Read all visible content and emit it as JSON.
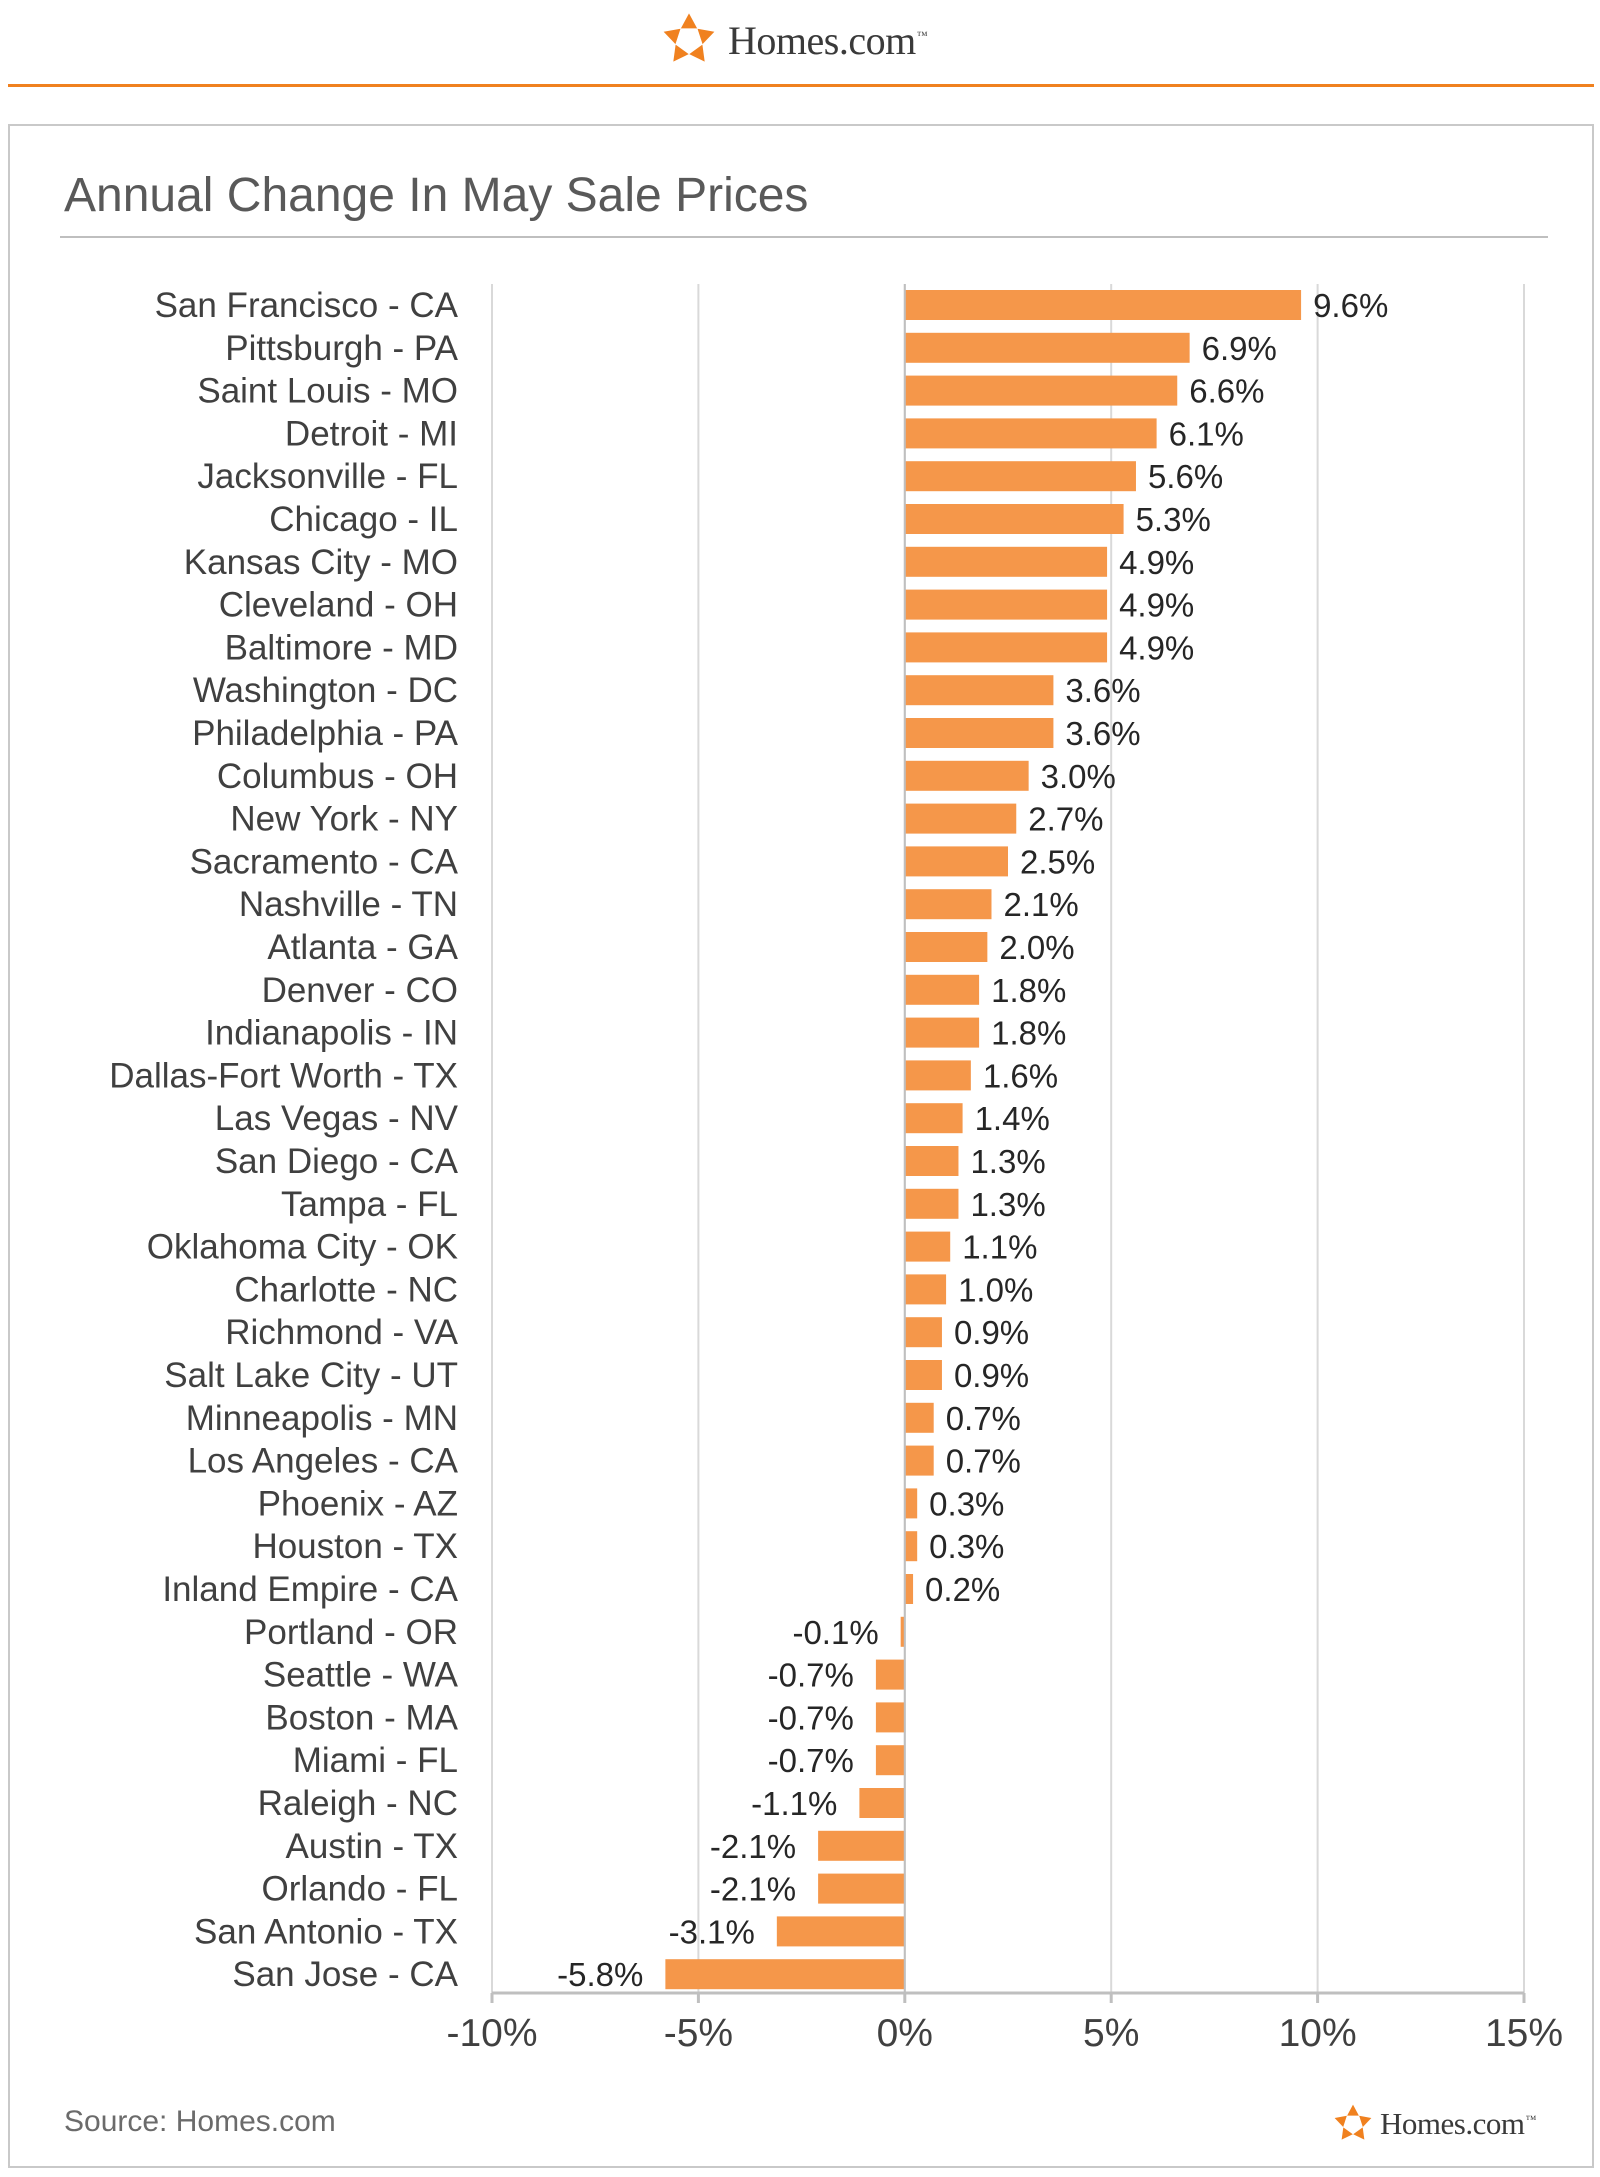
{
  "brand": {
    "name": "Homes.com",
    "tm": "™",
    "color": "#f0811f"
  },
  "chart_data": {
    "type": "bar",
    "orientation": "horizontal",
    "title": "Annual Change In May Sale Prices",
    "source": "Source: Homes.com",
    "bar_color": "#f5974a",
    "xlim": [
      -10,
      15
    ],
    "xticks": [
      -10,
      -5,
      0,
      5,
      10,
      15
    ],
    "xtick_labels": [
      "-10%",
      "-5%",
      "0%",
      "5%",
      "10%",
      "15%"
    ],
    "grid": true,
    "categories": [
      "San Francisco - CA",
      "Pittsburgh - PA",
      "Saint Louis - MO",
      "Detroit - MI",
      "Jacksonville - FL",
      "Chicago - IL",
      "Kansas City - MO",
      "Cleveland - OH",
      "Baltimore - MD",
      "Washington - DC",
      "Philadelphia - PA",
      "Columbus - OH",
      "New York - NY",
      "Sacramento - CA",
      "Nashville - TN",
      "Atlanta - GA",
      "Denver - CO",
      "Indianapolis - IN",
      "Dallas-Fort Worth - TX",
      "Las Vegas - NV",
      "San Diego - CA",
      "Tampa - FL",
      "Oklahoma City - OK",
      "Charlotte - NC",
      "Richmond - VA",
      "Salt Lake City - UT",
      "Minneapolis - MN",
      "Los Angeles - CA",
      "Phoenix - AZ",
      "Houston - TX",
      "Inland Empire - CA",
      "Portland - OR",
      "Seattle - WA",
      "Boston - MA",
      "Miami - FL",
      "Raleigh - NC",
      "Austin - TX",
      "Orlando - FL",
      "San Antonio - TX",
      "San Jose - CA"
    ],
    "values": [
      9.6,
      6.9,
      6.6,
      6.1,
      5.6,
      5.3,
      4.9,
      4.9,
      4.9,
      3.6,
      3.6,
      3.0,
      2.7,
      2.5,
      2.1,
      2.0,
      1.8,
      1.8,
      1.6,
      1.4,
      1.3,
      1.3,
      1.1,
      1.0,
      0.9,
      0.9,
      0.7,
      0.7,
      0.3,
      0.3,
      0.2,
      -0.1,
      -0.7,
      -0.7,
      -0.7,
      -1.1,
      -2.1,
      -2.1,
      -3.1,
      -5.8
    ],
    "value_labels": [
      "9.6%",
      "6.9%",
      "6.6%",
      "6.1%",
      "5.6%",
      "5.3%",
      "4.9%",
      "4.9%",
      "4.9%",
      "3.6%",
      "3.6%",
      "3.0%",
      "2.7%",
      "2.5%",
      "2.1%",
      "2.0%",
      "1.8%",
      "1.8%",
      "1.6%",
      "1.4%",
      "1.3%",
      "1.3%",
      "1.1%",
      "1.0%",
      "0.9%",
      "0.9%",
      "0.7%",
      "0.7%",
      "0.3%",
      "0.3%",
      "0.2%",
      "-0.1%",
      "-0.7%",
      "-0.7%",
      "-0.7%",
      "-1.1%",
      "-2.1%",
      "-2.1%",
      "-3.1%",
      "-5.8%"
    ]
  }
}
